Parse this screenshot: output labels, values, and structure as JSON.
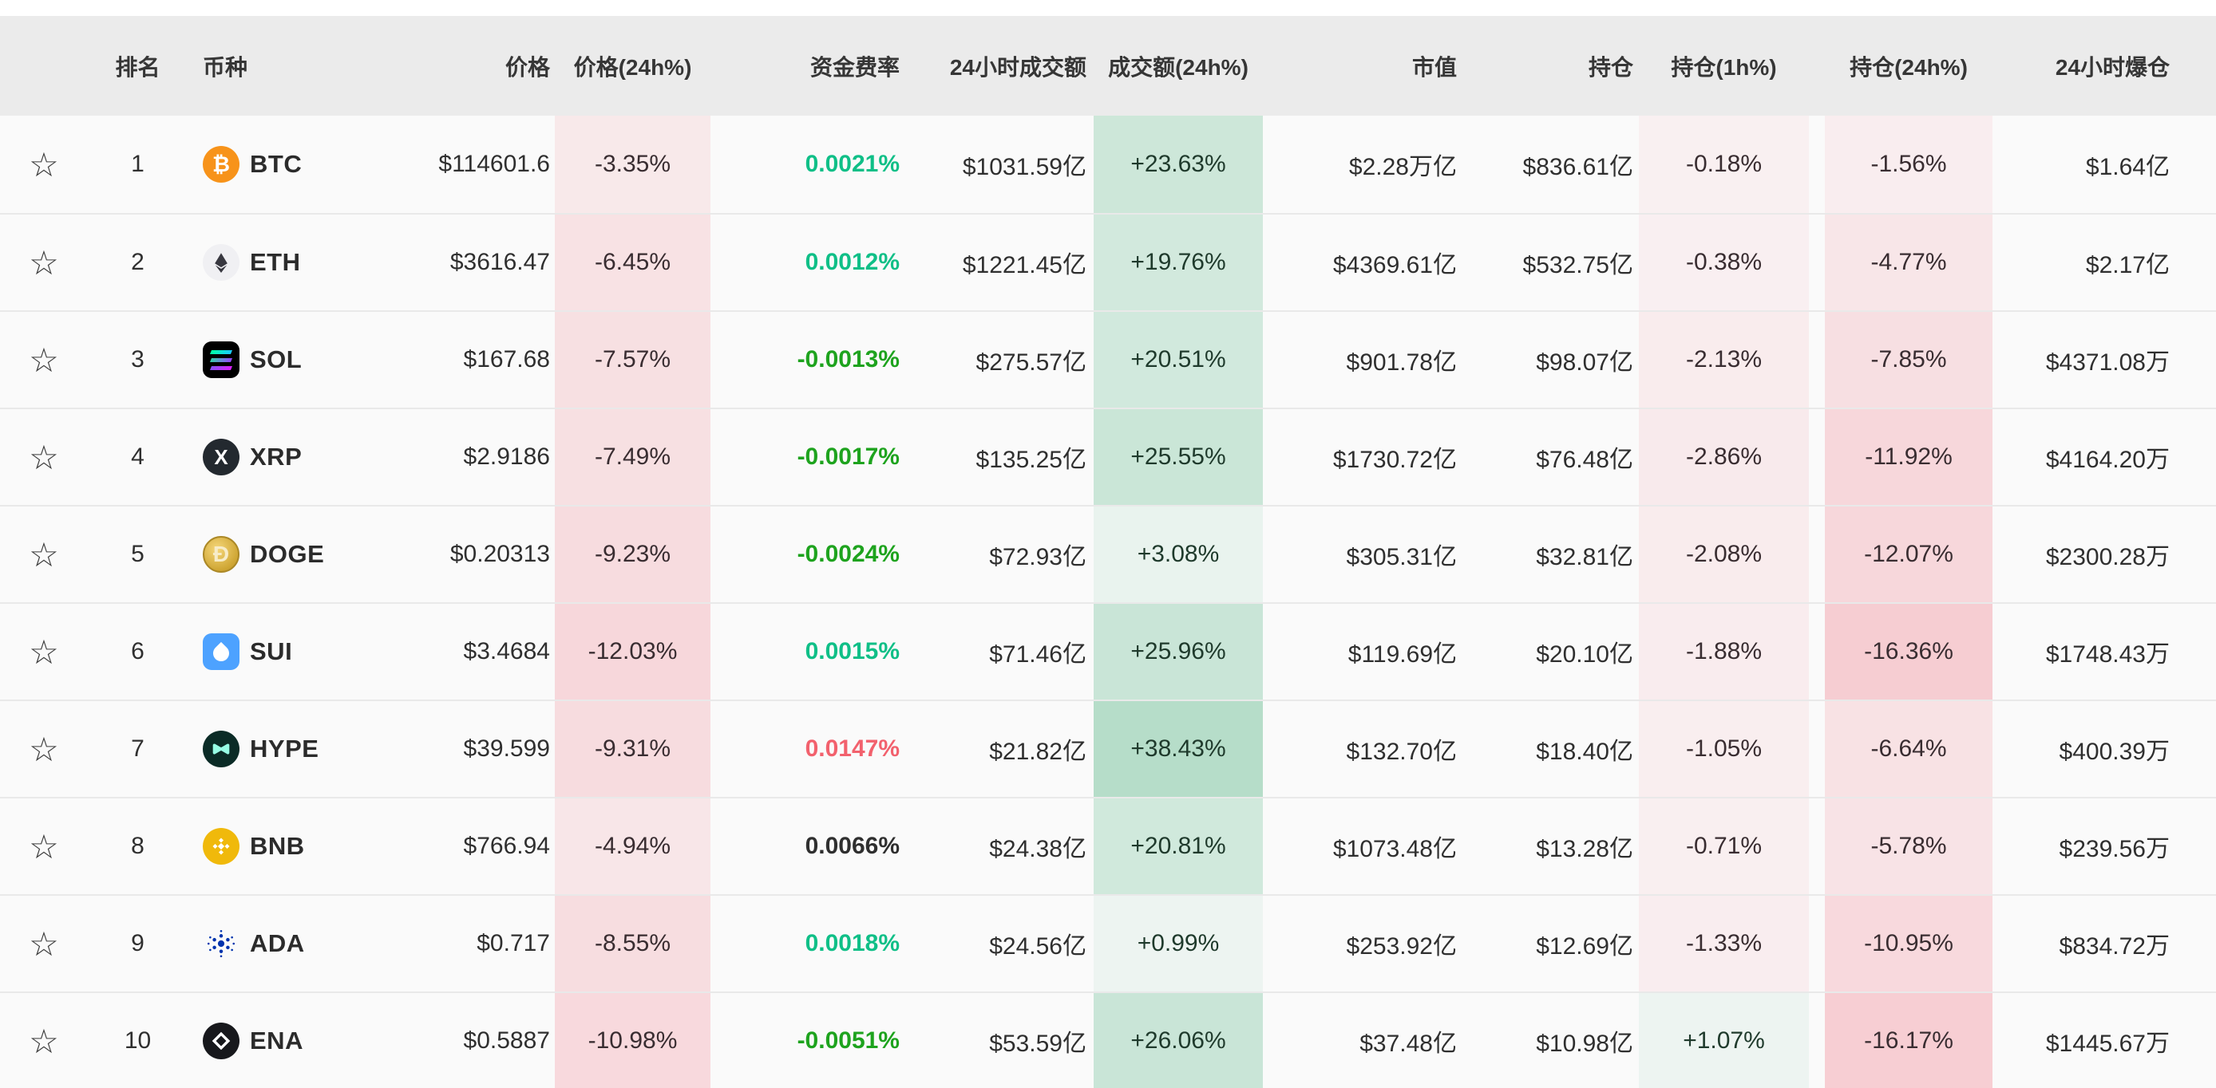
{
  "table": {
    "columns": [
      {
        "key": "rank",
        "label": "排名"
      },
      {
        "key": "coin",
        "label": "币种"
      },
      {
        "key": "price",
        "label": "价格"
      },
      {
        "key": "price_24h",
        "label": "价格(24h%)"
      },
      {
        "key": "funding",
        "label": "资金费率"
      },
      {
        "key": "volume_24h",
        "label": "24小时成交额"
      },
      {
        "key": "volume_chg",
        "label": "成交额(24h%)"
      },
      {
        "key": "market_cap",
        "label": "市值"
      },
      {
        "key": "open_interest",
        "label": "持仓"
      },
      {
        "key": "oi_1h",
        "label": "持仓(1h%)"
      },
      {
        "key": "oi_24h",
        "label": "持仓(24h%)"
      },
      {
        "key": "liq_24h",
        "label": "24小时爆仓"
      }
    ],
    "rows": [
      {
        "rank": 1,
        "symbol": "BTC",
        "icon": "btc",
        "price": "$114601.6",
        "price_24h": "-3.35%",
        "funding": "0.0021%",
        "funding_color": "teal",
        "volume_24h": "$1031.59亿",
        "volume_chg": "+23.63%",
        "market_cap": "$2.28万亿",
        "open_interest": "$836.61亿",
        "oi_1h": "-0.18%",
        "oi_24h": "-1.56%",
        "liq_24h": "$1.64亿"
      },
      {
        "rank": 2,
        "symbol": "ETH",
        "icon": "eth",
        "price": "$3616.47",
        "price_24h": "-6.45%",
        "funding": "0.0012%",
        "funding_color": "teal",
        "volume_24h": "$1221.45亿",
        "volume_chg": "+19.76%",
        "market_cap": "$4369.61亿",
        "open_interest": "$532.75亿",
        "oi_1h": "-0.38%",
        "oi_24h": "-4.77%",
        "liq_24h": "$2.17亿"
      },
      {
        "rank": 3,
        "symbol": "SOL",
        "icon": "sol",
        "price": "$167.68",
        "price_24h": "-7.57%",
        "funding": "-0.0013%",
        "funding_color": "green",
        "volume_24h": "$275.57亿",
        "volume_chg": "+20.51%",
        "market_cap": "$901.78亿",
        "open_interest": "$98.07亿",
        "oi_1h": "-2.13%",
        "oi_24h": "-7.85%",
        "liq_24h": "$4371.08万"
      },
      {
        "rank": 4,
        "symbol": "XRP",
        "icon": "xrp",
        "price": "$2.9186",
        "price_24h": "-7.49%",
        "funding": "-0.0017%",
        "funding_color": "green",
        "volume_24h": "$135.25亿",
        "volume_chg": "+25.55%",
        "market_cap": "$1730.72亿",
        "open_interest": "$76.48亿",
        "oi_1h": "-2.86%",
        "oi_24h": "-11.92%",
        "liq_24h": "$4164.20万"
      },
      {
        "rank": 5,
        "symbol": "DOGE",
        "icon": "doge",
        "price": "$0.20313",
        "price_24h": "-9.23%",
        "funding": "-0.0024%",
        "funding_color": "green",
        "volume_24h": "$72.93亿",
        "volume_chg": "+3.08%",
        "market_cap": "$305.31亿",
        "open_interest": "$32.81亿",
        "oi_1h": "-2.08%",
        "oi_24h": "-12.07%",
        "liq_24h": "$2300.28万"
      },
      {
        "rank": 6,
        "symbol": "SUI",
        "icon": "sui",
        "price": "$3.4684",
        "price_24h": "-12.03%",
        "funding": "0.0015%",
        "funding_color": "teal",
        "volume_24h": "$71.46亿",
        "volume_chg": "+25.96%",
        "market_cap": "$119.69亿",
        "open_interest": "$20.10亿",
        "oi_1h": "-1.88%",
        "oi_24h": "-16.36%",
        "liq_24h": "$1748.43万"
      },
      {
        "rank": 7,
        "symbol": "HYPE",
        "icon": "hype",
        "price": "$39.599",
        "price_24h": "-9.31%",
        "funding": "0.0147%",
        "funding_color": "red",
        "volume_24h": "$21.82亿",
        "volume_chg": "+38.43%",
        "market_cap": "$132.70亿",
        "open_interest": "$18.40亿",
        "oi_1h": "-1.05%",
        "oi_24h": "-6.64%",
        "liq_24h": "$400.39万"
      },
      {
        "rank": 8,
        "symbol": "BNB",
        "icon": "bnb",
        "price": "$766.94",
        "price_24h": "-4.94%",
        "funding": "0.0066%",
        "funding_color": "dark",
        "volume_24h": "$24.38亿",
        "volume_chg": "+20.81%",
        "market_cap": "$1073.48亿",
        "open_interest": "$13.28亿",
        "oi_1h": "-0.71%",
        "oi_24h": "-5.78%",
        "liq_24h": "$239.56万"
      },
      {
        "rank": 9,
        "symbol": "ADA",
        "icon": "ada",
        "price": "$0.717",
        "price_24h": "-8.55%",
        "funding": "0.0018%",
        "funding_color": "teal",
        "volume_24h": "$24.56亿",
        "volume_chg": "+0.99%",
        "market_cap": "$253.92亿",
        "open_interest": "$12.69亿",
        "oi_1h": "-1.33%",
        "oi_24h": "-10.95%",
        "liq_24h": "$834.72万"
      },
      {
        "rank": 10,
        "symbol": "ENA",
        "icon": "ena",
        "price": "$0.5887",
        "price_24h": "-10.98%",
        "funding": "-0.0051%",
        "funding_color": "green",
        "volume_24h": "$53.59亿",
        "volume_chg": "+26.06%",
        "market_cap": "$37.48亿",
        "open_interest": "$10.98亿",
        "oi_1h": "+1.07%",
        "oi_24h": "-16.17%",
        "liq_24h": "$1445.67万"
      }
    ]
  },
  "icons": {
    "favorite": "☆",
    "btc_glyph": "₿",
    "xrp_glyph": "X",
    "doge_glyph": "Ð"
  },
  "palette": {
    "teal": "#0fbf87",
    "green": "#1ea31e",
    "red": "#f2616d",
    "dark": "#2f2f2f",
    "band_up_rgb": "18,153,83",
    "band_down_rgb": "236,62,83",
    "band_text_up": "#1f3a2c",
    "band_text_down": "#392d31",
    "header_bg": "#ebebeb",
    "row_bg": "#fafafa"
  }
}
